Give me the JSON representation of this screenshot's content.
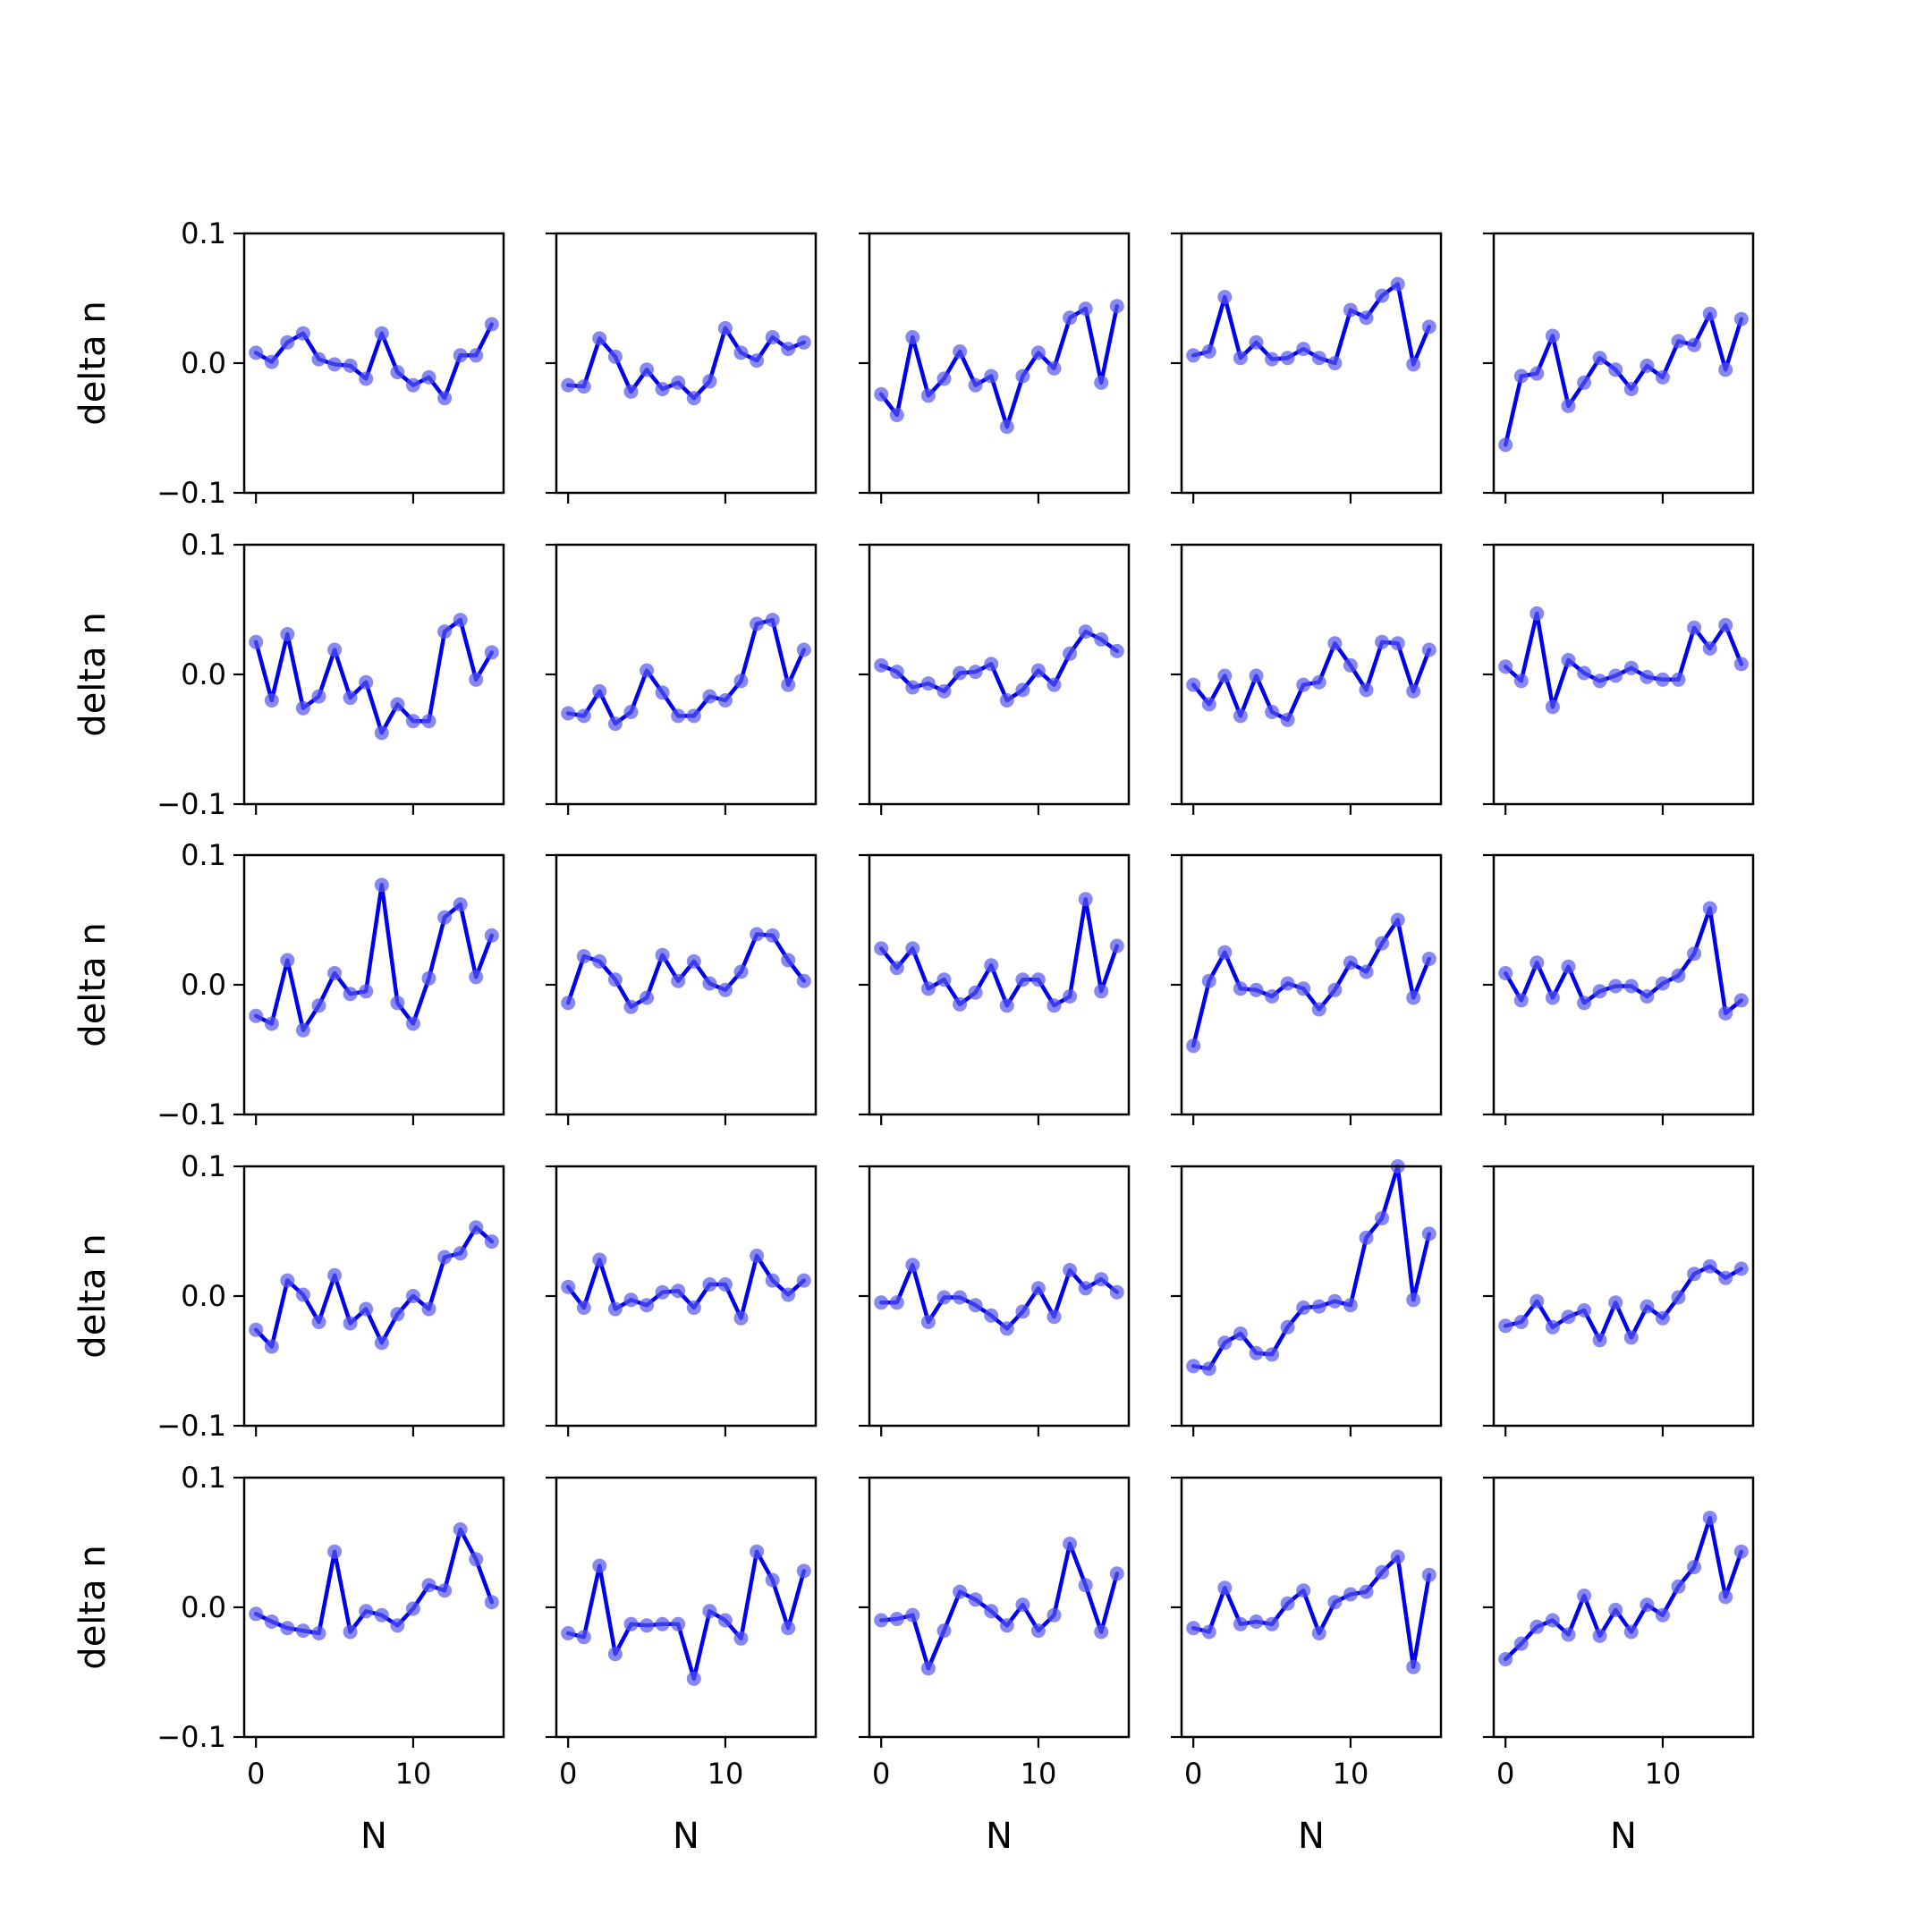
{
  "chart_data": {
    "type": "line",
    "layout": "5x5 grid of small multiples",
    "xlabel": "N",
    "ylabel": "delta n",
    "xlim": [
      -0.75,
      15.75
    ],
    "ylim": [
      -0.1,
      0.1
    ],
    "xticks": [
      0,
      10
    ],
    "xtick_labels": [
      "0",
      "10"
    ],
    "yticks": [
      -0.1,
      0.0,
      0.1
    ],
    "ytick_labels": [
      "−0.1",
      "0.0",
      "0.1"
    ],
    "grid": false,
    "colors": {
      "line": "#0000ee",
      "marker": "#5555ee",
      "frame": "#000000"
    },
    "x": [
      0,
      1,
      2,
      3,
      4,
      5,
      6,
      7,
      8,
      9,
      10,
      11,
      12,
      13,
      14,
      15
    ],
    "panels": [
      [
        {
          "values": [
            0.008,
            0.001,
            0.016,
            0.023,
            0.003,
            -0.001,
            -0.002,
            -0.012,
            0.023,
            -0.007,
            -0.017,
            -0.011,
            -0.027,
            0.006,
            0.006,
            0.03
          ]
        },
        {
          "values": [
            -0.017,
            -0.018,
            0.019,
            0.005,
            -0.022,
            -0.005,
            -0.02,
            -0.015,
            -0.027,
            -0.014,
            0.027,
            0.008,
            0.002,
            0.02,
            0.011,
            0.016
          ]
        },
        {
          "values": [
            -0.024,
            -0.04,
            0.02,
            -0.025,
            -0.012,
            0.009,
            -0.017,
            -0.01,
            -0.049,
            -0.01,
            0.008,
            -0.004,
            0.035,
            0.042,
            -0.015,
            0.044
          ]
        },
        {
          "values": [
            0.006,
            0.009,
            0.051,
            0.004,
            0.016,
            0.003,
            0.004,
            0.011,
            0.004,
            0.0,
            0.041,
            0.035,
            0.052,
            0.061,
            -0.001,
            0.028
          ]
        },
        {
          "values": [
            -0.063,
            -0.01,
            -0.008,
            0.021,
            -0.033,
            -0.015,
            0.004,
            -0.005,
            -0.02,
            -0.002,
            -0.011,
            0.017,
            0.014,
            0.038,
            -0.005,
            0.034
          ]
        }
      ],
      [
        {
          "values": [
            0.025,
            -0.02,
            0.031,
            -0.026,
            -0.017,
            0.019,
            -0.018,
            -0.006,
            -0.045,
            -0.023,
            -0.036,
            -0.036,
            0.033,
            0.042,
            -0.004,
            0.017
          ]
        },
        {
          "values": [
            -0.03,
            -0.032,
            -0.013,
            -0.038,
            -0.029,
            0.003,
            -0.014,
            -0.032,
            -0.032,
            -0.017,
            -0.02,
            -0.005,
            0.039,
            0.042,
            -0.008,
            0.019
          ]
        },
        {
          "values": [
            0.007,
            0.002,
            -0.01,
            -0.007,
            -0.013,
            0.001,
            0.002,
            0.008,
            -0.02,
            -0.012,
            0.003,
            -0.008,
            0.016,
            0.033,
            0.027,
            0.018
          ]
        },
        {
          "values": [
            -0.008,
            -0.023,
            -0.001,
            -0.032,
            -0.001,
            -0.029,
            -0.035,
            -0.008,
            -0.006,
            0.024,
            0.007,
            -0.012,
            0.025,
            0.024,
            -0.013,
            0.019
          ]
        },
        {
          "values": [
            0.006,
            -0.005,
            0.047,
            -0.025,
            0.011,
            0.001,
            -0.005,
            -0.001,
            0.005,
            -0.002,
            -0.004,
            -0.004,
            0.036,
            0.02,
            0.038,
            0.008
          ]
        }
      ],
      [
        {
          "values": [
            -0.024,
            -0.03,
            0.019,
            -0.035,
            -0.016,
            0.009,
            -0.007,
            -0.005,
            0.077,
            -0.014,
            -0.03,
            0.005,
            0.052,
            0.062,
            0.006,
            0.038
          ]
        },
        {
          "values": [
            -0.014,
            0.022,
            0.018,
            0.004,
            -0.017,
            -0.01,
            0.023,
            0.003,
            0.018,
            0.001,
            -0.004,
            0.01,
            0.039,
            0.038,
            0.019,
            0.003
          ]
        },
        {
          "values": [
            0.028,
            0.013,
            0.028,
            -0.003,
            0.004,
            -0.015,
            -0.006,
            0.015,
            -0.016,
            0.004,
            0.004,
            -0.016,
            -0.009,
            0.066,
            -0.005,
            0.03
          ]
        },
        {
          "values": [
            -0.047,
            0.003,
            0.025,
            -0.003,
            -0.004,
            -0.009,
            0.001,
            -0.003,
            -0.019,
            -0.004,
            0.017,
            0.01,
            0.032,
            0.05,
            -0.01,
            0.02
          ]
        },
        {
          "values": [
            0.009,
            -0.012,
            0.017,
            -0.01,
            0.014,
            -0.014,
            -0.005,
            -0.001,
            -0.001,
            -0.009,
            0.001,
            0.007,
            0.024,
            0.059,
            -0.022,
            -0.012
          ]
        }
      ],
      [
        {
          "values": [
            -0.026,
            -0.039,
            0.012,
            0.001,
            -0.02,
            0.016,
            -0.021,
            -0.01,
            -0.036,
            -0.014,
            0.0,
            -0.01,
            0.03,
            0.033,
            0.053,
            0.042
          ]
        },
        {
          "values": [
            0.007,
            -0.009,
            0.028,
            -0.01,
            -0.003,
            -0.007,
            0.003,
            0.004,
            -0.009,
            0.009,
            0.009,
            -0.017,
            0.031,
            0.012,
            0.001,
            0.012
          ]
        },
        {
          "values": [
            -0.005,
            -0.005,
            0.024,
            -0.02,
            -0.001,
            -0.001,
            -0.007,
            -0.015,
            -0.025,
            -0.012,
            0.006,
            -0.016,
            0.02,
            0.006,
            0.013,
            0.003
          ]
        },
        {
          "values": [
            -0.054,
            -0.056,
            -0.036,
            -0.029,
            -0.044,
            -0.045,
            -0.024,
            -0.009,
            -0.008,
            -0.004,
            -0.007,
            0.045,
            0.06,
            0.1,
            -0.003,
            0.048
          ]
        },
        {
          "values": [
            -0.023,
            -0.02,
            -0.004,
            -0.024,
            -0.016,
            -0.011,
            -0.034,
            -0.005,
            -0.032,
            -0.008,
            -0.017,
            -0.001,
            0.017,
            0.023,
            0.014,
            0.021
          ]
        }
      ],
      [
        {
          "values": [
            -0.005,
            -0.011,
            -0.016,
            -0.018,
            -0.02,
            0.043,
            -0.019,
            -0.003,
            -0.006,
            -0.014,
            -0.001,
            0.017,
            0.013,
            0.06,
            0.037,
            0.004
          ]
        },
        {
          "values": [
            -0.02,
            -0.023,
            0.032,
            -0.036,
            -0.013,
            -0.014,
            -0.013,
            -0.013,
            -0.055,
            -0.003,
            -0.01,
            -0.024,
            0.043,
            0.021,
            -0.016,
            0.028
          ]
        },
        {
          "values": [
            -0.01,
            -0.009,
            -0.006,
            -0.047,
            -0.018,
            0.012,
            0.006,
            -0.003,
            -0.014,
            0.002,
            -0.018,
            -0.006,
            0.049,
            0.017,
            -0.019,
            0.026
          ]
        },
        {
          "values": [
            -0.016,
            -0.019,
            0.015,
            -0.013,
            -0.011,
            -0.013,
            0.003,
            0.013,
            -0.02,
            0.004,
            0.01,
            0.012,
            0.027,
            0.039,
            -0.046,
            0.025
          ]
        },
        {
          "values": [
            -0.04,
            -0.028,
            -0.015,
            -0.01,
            -0.021,
            0.009,
            -0.022,
            -0.002,
            -0.019,
            0.002,
            -0.006,
            0.016,
            0.031,
            0.069,
            0.008,
            0.043
          ]
        }
      ]
    ]
  }
}
